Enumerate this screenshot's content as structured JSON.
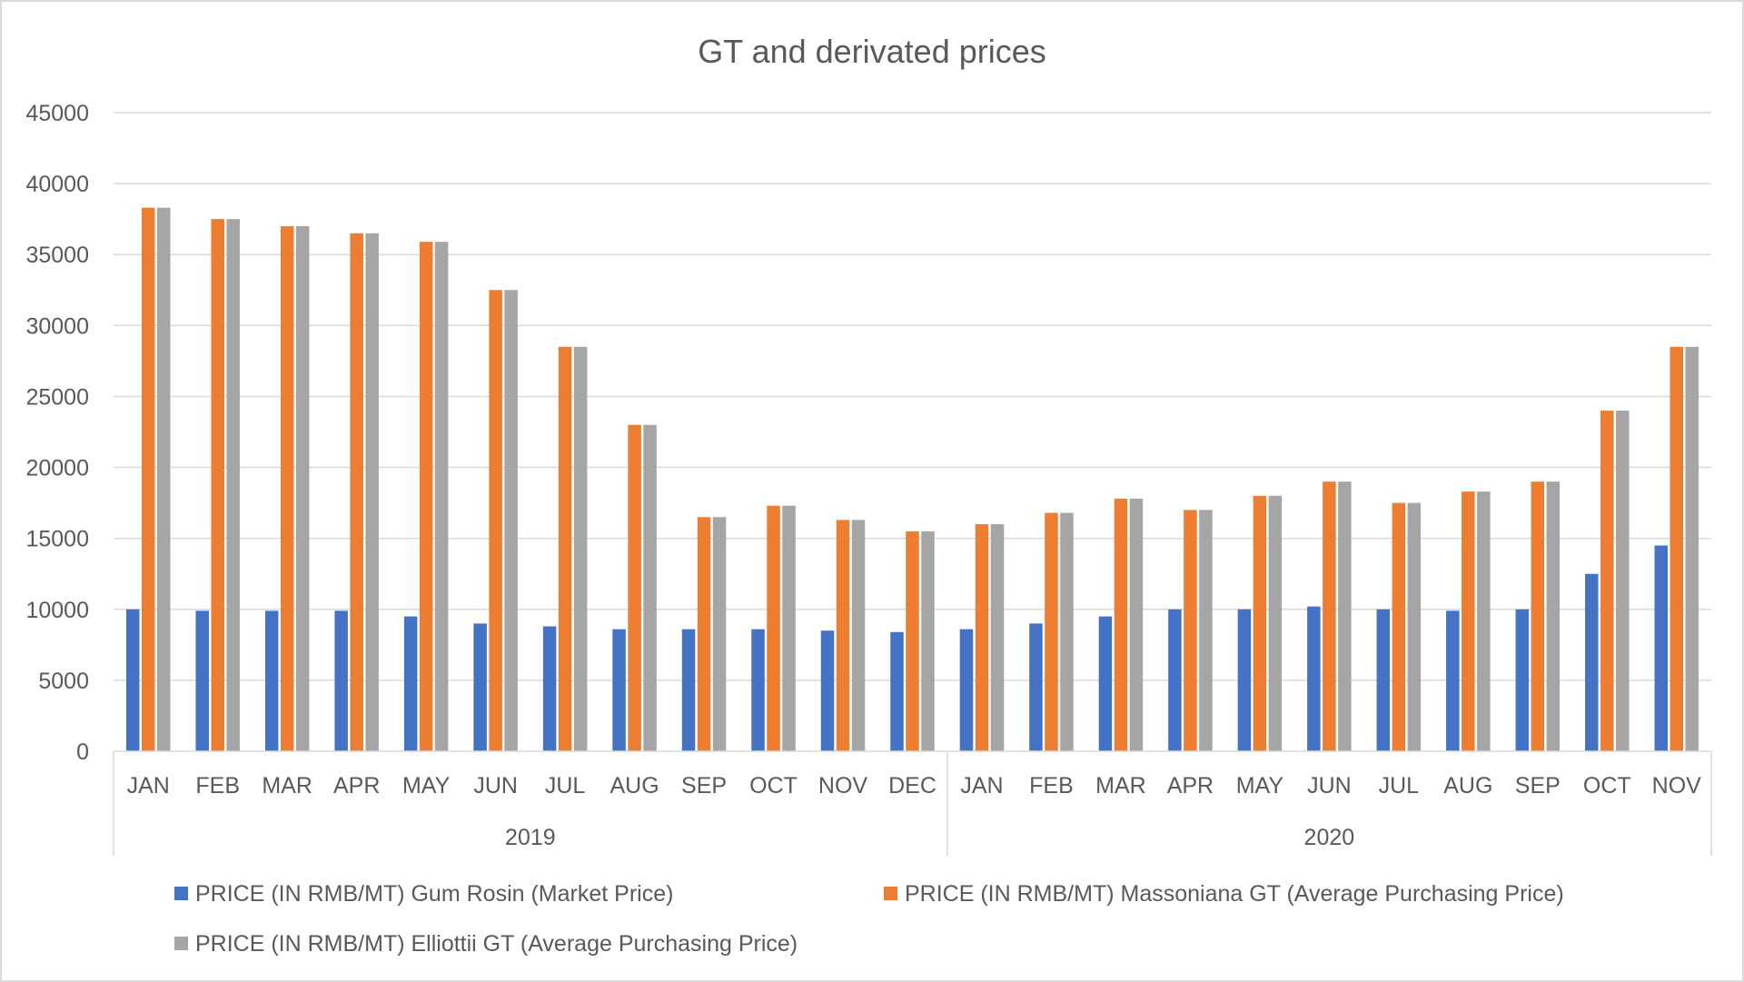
{
  "chart_data": {
    "type": "bar",
    "title": "GT and derivated prices",
    "xlabel": "",
    "ylabel": "",
    "ylim": [
      0,
      45000
    ],
    "ytick_step": 5000,
    "grid": true,
    "legend_position": "bottom",
    "categories": [
      "JAN",
      "FEB",
      "MAR",
      "APR",
      "MAY",
      "JUN",
      "JUL",
      "AUG",
      "SEP",
      "OCT",
      "NOV",
      "DEC",
      "JAN",
      "FEB",
      "MAR",
      "APR",
      "MAY",
      "JUN",
      "JUL",
      "AUG",
      "SEP",
      "OCT",
      "NOV"
    ],
    "groups": [
      {
        "label": "2019",
        "count": 12
      },
      {
        "label": "2020",
        "count": 11
      }
    ],
    "series": [
      {
        "name": "PRICE (IN RMB/MT) Gum Rosin (Market Price)",
        "color": "#4472c4",
        "values": [
          10000,
          9900,
          9900,
          9900,
          9500,
          9000,
          8800,
          8600,
          8600,
          8600,
          8500,
          8400,
          8600,
          9000,
          9500,
          10000,
          10000,
          10200,
          10000,
          9900,
          10000,
          12500,
          14500
        ]
      },
      {
        "name": "PRICE (IN RMB/MT) Massoniana GT (Average Purchasing Price)",
        "color": "#ed7d31",
        "values": [
          38300,
          37500,
          37000,
          36500,
          35900,
          32500,
          28500,
          23000,
          16500,
          17300,
          16300,
          15500,
          16000,
          16800,
          17800,
          17000,
          18000,
          19000,
          17500,
          18300,
          19000,
          24000,
          28500
        ]
      },
      {
        "name": "PRICE (IN RMB/MT) Elliottii GT (Average Purchasing Price)",
        "color": "#a5a5a5",
        "values": [
          38300,
          37500,
          37000,
          36500,
          35900,
          32500,
          28500,
          23000,
          16500,
          17300,
          16300,
          15500,
          16000,
          16800,
          17800,
          17000,
          18000,
          19000,
          17500,
          18300,
          19000,
          24000,
          28500
        ]
      }
    ]
  }
}
